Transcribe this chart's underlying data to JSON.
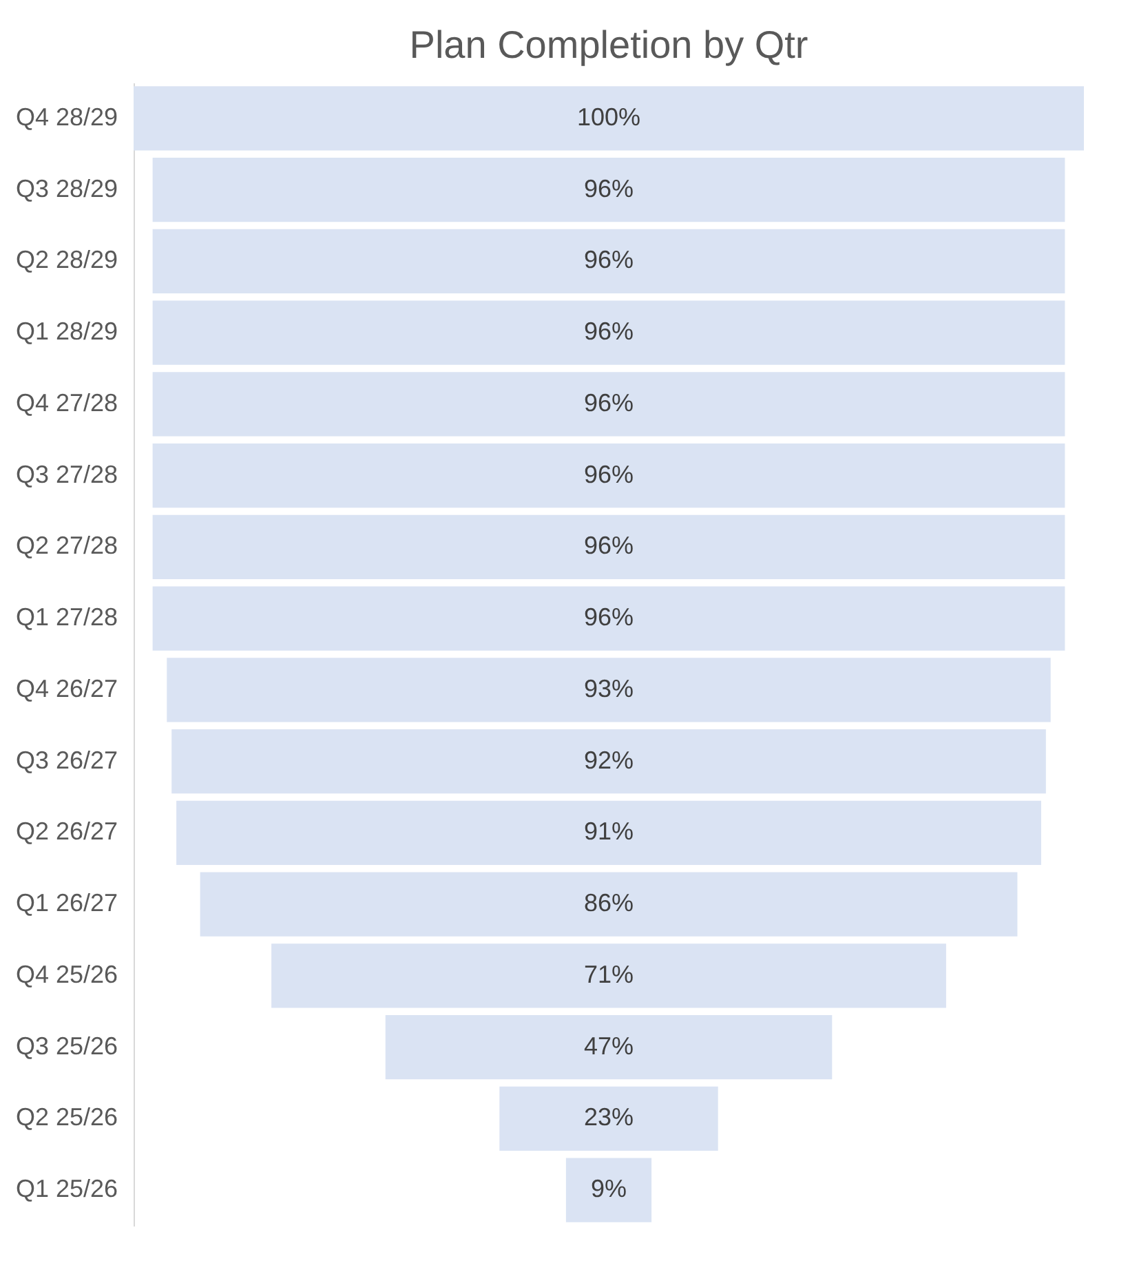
{
  "chart_data": {
    "type": "other",
    "title": "Plan Completion by Qtr",
    "categories": [
      "Q4 28/29",
      "Q3 28/29",
      "Q2 28/29",
      "Q1 28/29",
      "Q4 27/28",
      "Q3 27/28",
      "Q2 27/28",
      "Q1 27/28",
      "Q4 26/27",
      "Q3 26/27",
      "Q2 26/27",
      "Q1 26/27",
      "Q4 25/26",
      "Q3 25/26",
      "Q2 25/26",
      "Q1 25/26"
    ],
    "values": [
      100,
      96,
      96,
      96,
      96,
      96,
      96,
      96,
      93,
      92,
      91,
      86,
      71,
      47,
      23,
      9
    ],
    "value_labels": [
      "100%",
      "96%",
      "96%",
      "96%",
      "96%",
      "96%",
      "96%",
      "96%",
      "93%",
      "92%",
      "91%",
      "86%",
      "71%",
      "47%",
      "23%",
      "9%"
    ],
    "color": "#dae3f3"
  }
}
